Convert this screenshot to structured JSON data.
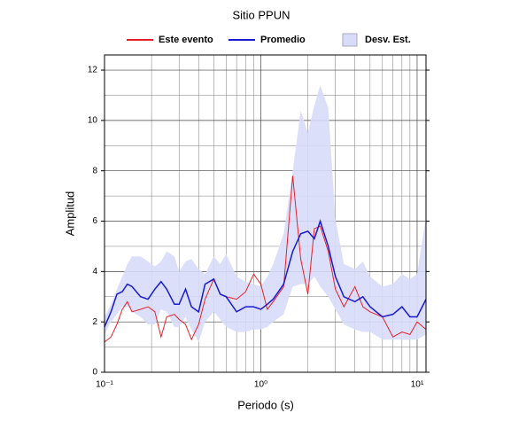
{
  "chart_data": {
    "type": "line",
    "title": "Sitio PPUN",
    "xlabel": "Periodo (s)",
    "ylabel": "Amplitud",
    "xscale": "log",
    "xlim": [
      0.1,
      11.4
    ],
    "ylim": [
      0,
      12.6
    ],
    "xticks": [
      {
        "value": 0.1,
        "label": "10⁻¹"
      },
      {
        "value": 1,
        "label": "10⁰"
      },
      {
        "value": 10,
        "label": "10¹"
      }
    ],
    "yticks": [
      0,
      2,
      4,
      6,
      8,
      10,
      12
    ],
    "grid": true,
    "x_minor_grid": true,
    "y_minor_grid": true,
    "legend": "top",
    "x": [
      0.1,
      0.11,
      0.12,
      0.13,
      0.14,
      0.15,
      0.17,
      0.19,
      0.21,
      0.23,
      0.25,
      0.28,
      0.3,
      0.33,
      0.36,
      0.4,
      0.44,
      0.5,
      0.55,
      0.6,
      0.7,
      0.8,
      0.9,
      1.0,
      1.1,
      1.2,
      1.4,
      1.6,
      1.8,
      2.0,
      2.2,
      2.4,
      2.7,
      3.0,
      3.4,
      4,
      4.5,
      5,
      6,
      7,
      8,
      9,
      10,
      11.4
    ],
    "series": [
      {
        "name": "Este evento",
        "color": "#e8202a",
        "values": [
          1.2,
          1.4,
          1.9,
          2.5,
          2.8,
          2.4,
          2.5,
          2.6,
          2.4,
          1.4,
          2.2,
          2.3,
          2.1,
          1.9,
          1.3,
          1.9,
          2.9,
          3.7,
          3.1,
          3.0,
          2.9,
          3.2,
          3.9,
          3.5,
          2.5,
          2.8,
          3.4,
          7.8,
          4.5,
          3.1,
          5.7,
          5.8,
          4.8,
          3.3,
          2.6,
          3.4,
          2.6,
          2.4,
          2.2,
          1.4,
          1.6,
          1.5,
          2.0,
          1.7
        ]
      },
      {
        "name": "Promedio",
        "color": "#1a1ad0",
        "values": [
          1.8,
          2.4,
          3.1,
          3.2,
          3.5,
          3.4,
          3.0,
          2.9,
          3.3,
          3.6,
          3.3,
          2.7,
          2.7,
          3.3,
          2.6,
          2.4,
          3.5,
          3.7,
          3.1,
          3.0,
          2.4,
          2.6,
          2.6,
          2.5,
          2.7,
          2.9,
          3.5,
          4.8,
          5.5,
          5.6,
          5.3,
          6.0,
          5.0,
          3.8,
          3.0,
          2.8,
          3.0,
          2.6,
          2.2,
          2.3,
          2.6,
          2.2,
          2.2,
          2.9
        ]
      }
    ],
    "band": {
      "name": "Desv. Est.",
      "color": "#d8dcf8",
      "upper": [
        2.2,
        2.7,
        3.3,
        3.8,
        4.3,
        4.6,
        4.6,
        4.4,
        4.2,
        4.4,
        4.8,
        4.6,
        4.0,
        4.4,
        4.5,
        4.1,
        3.9,
        4.6,
        4.3,
        4.7,
        3.8,
        3.6,
        3.5,
        3.4,
        3.8,
        4.3,
        5.5,
        8.0,
        10.4,
        9.5,
        10.6,
        11.4,
        10.5,
        6.1,
        4.3,
        4.1,
        4.4,
        3.8,
        3.4,
        3.5,
        3.9,
        3.7,
        3.9,
        6.2
      ],
      "lower": [
        1.5,
        2.0,
        2.3,
        2.6,
        2.6,
        2.4,
        2.2,
        1.9,
        1.9,
        2.5,
        2.4,
        1.8,
        1.8,
        2.2,
        1.7,
        1.2,
        2.0,
        2.4,
        2.1,
        1.8,
        1.6,
        1.6,
        1.7,
        1.7,
        1.8,
        2.0,
        2.3,
        3.4,
        3.5,
        3.5,
        3.8,
        3.4,
        3.0,
        2.5,
        1.9,
        1.7,
        1.6,
        1.6,
        1.3,
        1.3,
        1.3,
        1.3,
        1.3,
        1.5
      ]
    }
  }
}
